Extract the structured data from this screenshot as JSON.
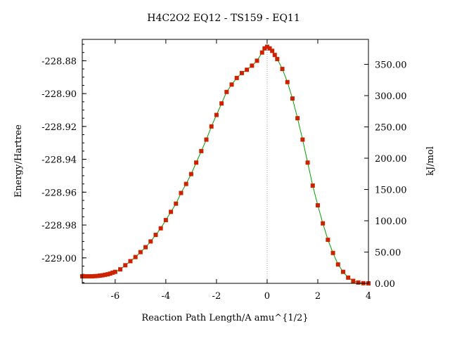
{
  "chart_data": {
    "type": "line",
    "title": "H4C2O2    EQ12 - TS159 - EQ11",
    "xlabel": "Reaction Path Length/A amu^{1/2}",
    "ylabel": "Energy/Hartree",
    "y2label": "kJ/mol",
    "xlim": [
      -7.3,
      4.0
    ],
    "ylim": [
      -229.0155,
      -228.867
    ],
    "x_ticks": [
      -6,
      -4,
      -2,
      0,
      2,
      4
    ],
    "x_tick_labels": [
      "-6",
      "-4",
      "-2",
      "0",
      "2",
      "4"
    ],
    "y_ticks": [
      -229.0,
      -228.98,
      -228.96,
      -228.94,
      -228.92,
      -228.9,
      -228.88
    ],
    "y_tick_labels": [
      "-229.00",
      "-228.98",
      "-228.96",
      "-228.94",
      "-228.92",
      "-228.90",
      "-228.88"
    ],
    "y2_ref_energy": -229.0155,
    "y2_factor": 2625.5,
    "y2_ticks": [
      0,
      50,
      100,
      150,
      200,
      250,
      300,
      350
    ],
    "y2_tick_labels": [
      "0.00",
      "50.00",
      "100.00",
      "150.00",
      "200.00",
      "250.00",
      "300.00",
      "350.00"
    ],
    "ts_marker_x": 0.0,
    "grid": false,
    "legend": "none",
    "series": [
      {
        "line_color": "#00a000",
        "marker_color": "#cc2200",
        "points": [
          [
            -7.3,
            -229.0112
          ],
          [
            -7.2,
            -229.0112
          ],
          [
            -7.1,
            -229.0112
          ],
          [
            -7.0,
            -229.0112
          ],
          [
            -6.9,
            -229.0112
          ],
          [
            -6.8,
            -229.0111
          ],
          [
            -6.7,
            -229.011
          ],
          [
            -6.6,
            -229.0108
          ],
          [
            -6.5,
            -229.0106
          ],
          [
            -6.4,
            -229.0103
          ],
          [
            -6.3,
            -229.01
          ],
          [
            -6.2,
            -229.0096
          ],
          [
            -6.1,
            -229.009
          ],
          [
            -6.0,
            -229.0085
          ],
          [
            -5.8,
            -229.007
          ],
          [
            -5.6,
            -229.0045
          ],
          [
            -5.4,
            -229.002
          ],
          [
            -5.2,
            -228.9995
          ],
          [
            -5.0,
            -228.9965
          ],
          [
            -4.8,
            -228.9935
          ],
          [
            -4.6,
            -228.99
          ],
          [
            -4.4,
            -228.986
          ],
          [
            -4.2,
            -228.982
          ],
          [
            -4.0,
            -228.977
          ],
          [
            -3.8,
            -228.972
          ],
          [
            -3.6,
            -228.967
          ],
          [
            -3.4,
            -228.9605
          ],
          [
            -3.2,
            -228.955
          ],
          [
            -3.0,
            -228.949
          ],
          [
            -2.8,
            -228.942
          ],
          [
            -2.6,
            -228.935
          ],
          [
            -2.4,
            -228.928
          ],
          [
            -2.2,
            -228.92
          ],
          [
            -2.0,
            -228.913
          ],
          [
            -1.8,
            -228.906
          ],
          [
            -1.6,
            -228.899
          ],
          [
            -1.4,
            -228.8945
          ],
          [
            -1.2,
            -228.8905
          ],
          [
            -1.0,
            -228.8875
          ],
          [
            -0.8,
            -228.8855
          ],
          [
            -0.6,
            -228.883
          ],
          [
            -0.4,
            -228.88
          ],
          [
            -0.2,
            -228.875
          ],
          [
            -0.1,
            -228.8725
          ],
          [
            0.0,
            -228.8715
          ],
          [
            0.1,
            -228.8725
          ],
          [
            0.2,
            -228.874
          ],
          [
            0.3,
            -228.8765
          ],
          [
            0.4,
            -228.879
          ],
          [
            0.6,
            -228.885
          ],
          [
            0.8,
            -228.893
          ],
          [
            1.0,
            -228.903
          ],
          [
            1.2,
            -228.915
          ],
          [
            1.4,
            -228.928
          ],
          [
            1.6,
            -228.942
          ],
          [
            1.8,
            -228.956
          ],
          [
            2.0,
            -228.968
          ],
          [
            2.2,
            -228.979
          ],
          [
            2.4,
            -228.989
          ],
          [
            2.6,
            -228.997
          ],
          [
            2.8,
            -229.004
          ],
          [
            3.0,
            -229.0085
          ],
          [
            3.2,
            -229.012
          ],
          [
            3.4,
            -229.014
          ],
          [
            3.6,
            -229.015
          ],
          [
            3.8,
            -229.0154
          ],
          [
            4.0,
            -229.0155
          ]
        ]
      }
    ]
  }
}
